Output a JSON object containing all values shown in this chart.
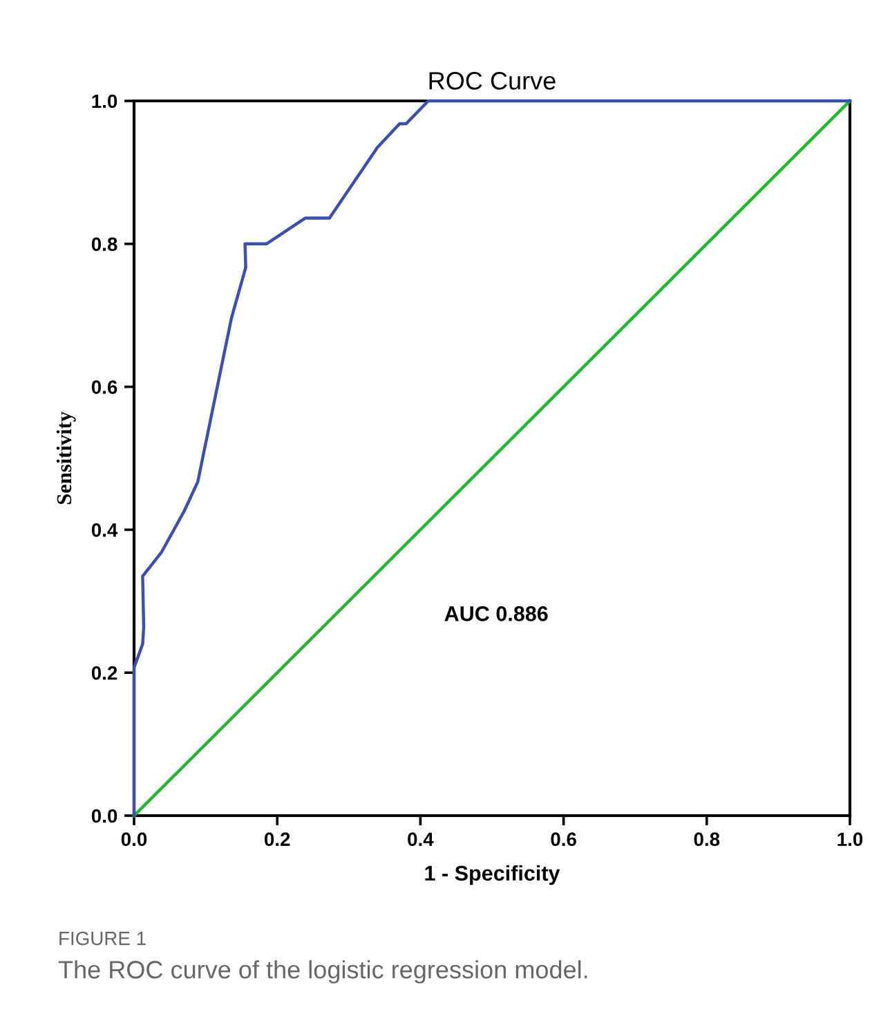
{
  "chart_data": {
    "type": "line",
    "title": "ROC Curve",
    "xlabel": "1 - Specificity",
    "ylabel": "Sensitivity",
    "series": [
      {
        "color": "#3a4fae",
        "x": [
          0,
          0,
          0.012,
          0.0135,
          0.012,
          0.038,
          0.07,
          0.089,
          0.136,
          0.156,
          0.155,
          0.185,
          0.239,
          0.273,
          0.34,
          0.371,
          0.38,
          0.411,
          1.0
        ],
        "values": [
          0,
          0.207,
          0.24,
          0.264,
          0.335,
          0.368,
          0.426,
          0.467,
          0.696,
          0.767,
          0.8,
          0.8,
          0.836,
          0.836,
          0.935,
          0.968,
          0.968,
          1.0,
          1.0
        ]
      },
      {
        "color": "#22b530",
        "x": [
          0,
          1
        ],
        "values": [
          0,
          1
        ]
      }
    ],
    "xlim": [
      0,
      1
    ],
    "ylim": [
      0,
      1
    ],
    "xticks": [
      {
        "value": 0,
        "label": "0.0"
      },
      0.2,
      0.4,
      0.6,
      0.8,
      {
        "value": 1,
        "label": "1.0"
      }
    ],
    "yticks": [
      {
        "value": 0,
        "label": "0.0"
      },
      0.2,
      0.4,
      0.6,
      0.8,
      {
        "value": 1,
        "label": "1.0"
      }
    ],
    "grid": false,
    "legend": false,
    "marker": "none",
    "line_style": "solid",
    "annotations": [
      "AUC 0.886",
      "FIGURE 1",
      "The ROC curve of the logistic regression model."
    ]
  }
}
